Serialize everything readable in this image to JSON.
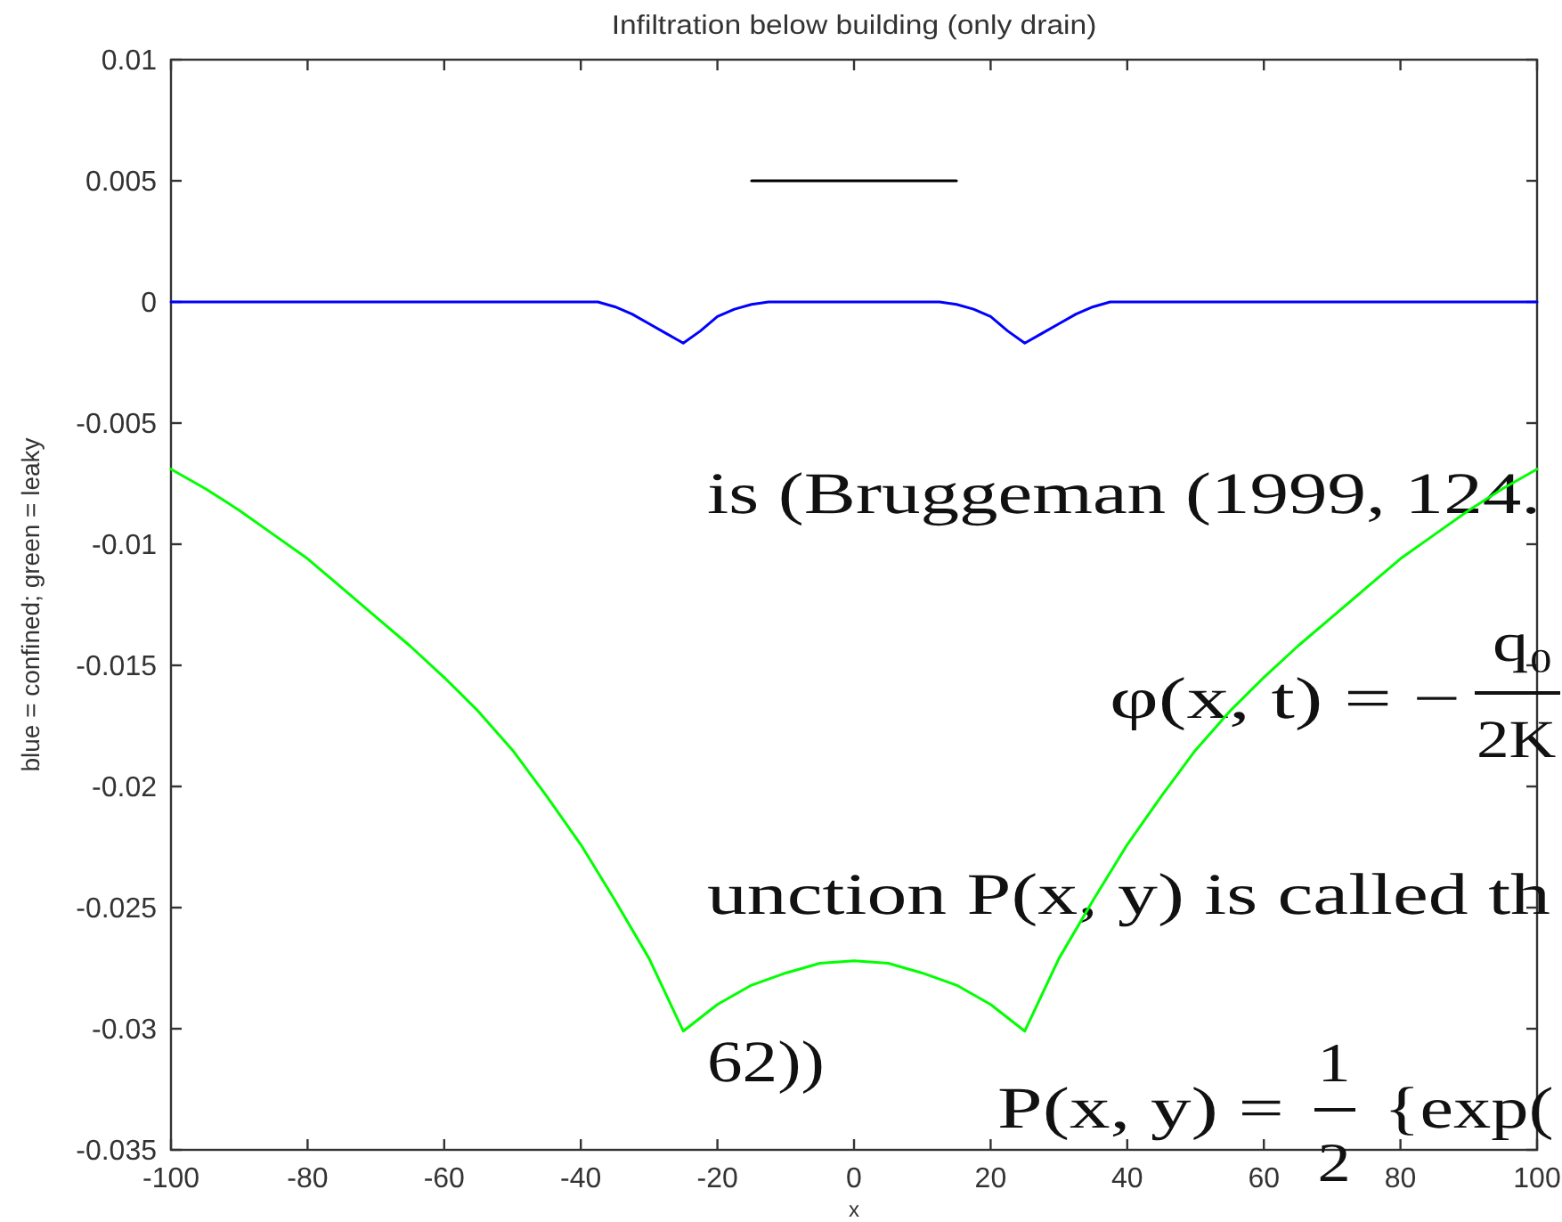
{
  "chart_data": {
    "type": "line",
    "title": "Infiltration below building (only drain)",
    "xlabel": "x",
    "ylabel": "blue = confined; green = leaky",
    "xlim": [
      -100,
      100
    ],
    "ylim": [
      -0.035,
      0.01
    ],
    "xticks": [
      -100,
      -80,
      -60,
      -40,
      -20,
      0,
      20,
      40,
      60,
      80,
      100
    ],
    "yticks": [
      -0.035,
      -0.03,
      -0.025,
      -0.02,
      -0.015,
      -0.01,
      -0.005,
      0,
      0.005,
      0.01
    ],
    "series": [
      {
        "color": "#0000ff",
        "x": [
          -100,
          -37.5,
          -35,
          -32.5,
          -30,
          -27.5,
          -25,
          -22.5,
          -20,
          -17.5,
          -15,
          -12.5,
          12.5,
          15,
          17.5,
          20,
          22.5,
          25,
          27.5,
          30,
          32.5,
          35,
          37.5,
          100
        ],
        "values": [
          0,
          0,
          -0.0002,
          -0.0005,
          -0.0009,
          -0.0013,
          -0.0017,
          -0.0012,
          -0.0006,
          -0.0003,
          -0.0001,
          0,
          0,
          -0.0001,
          -0.0003,
          -0.0006,
          -0.0012,
          -0.0017,
          -0.0013,
          -0.0009,
          -0.0005,
          -0.0002,
          0,
          0
        ]
      },
      {
        "color": "#00ff00",
        "x": [
          -100,
          -95,
          -90,
          -85,
          -80,
          -75,
          -70,
          -65,
          -60,
          -55,
          -50,
          -45,
          -40,
          -35,
          -30,
          -25,
          -20,
          -15,
          -10,
          -5,
          0,
          5,
          10,
          15,
          20,
          25,
          30,
          35,
          40,
          45,
          50,
          55,
          60,
          65,
          70,
          75,
          80,
          85,
          90,
          95,
          100
        ],
        "values": [
          -0.0069,
          -0.0077,
          -0.0086,
          -0.0096,
          -0.0106,
          -0.0118,
          -0.013,
          -0.0142,
          -0.0155,
          -0.0169,
          -0.0185,
          -0.0204,
          -0.0224,
          -0.0247,
          -0.0271,
          -0.0301,
          -0.029,
          -0.0282,
          -0.0277,
          -0.0273,
          -0.0272,
          -0.0273,
          -0.0277,
          -0.0282,
          -0.029,
          -0.0301,
          -0.0271,
          -0.0247,
          -0.0224,
          -0.0204,
          -0.0185,
          -0.0169,
          -0.0155,
          -0.0142,
          -0.013,
          -0.0118,
          -0.0106,
          -0.0096,
          -0.0086,
          -0.0077,
          -0.0069
        ]
      },
      {
        "color": "#000000",
        "x": [
          -15,
          15
        ],
        "values": [
          0.005,
          0.005
        ]
      }
    ],
    "annotations": [
      "is (Bruggeman (1999, 124.",
      "φ(x, t) = −",
      "q₀",
      "2K",
      "unction P(x, y) is called th",
      "62))",
      "P(x, y) =",
      "1",
      "2",
      "{exp("
    ]
  }
}
